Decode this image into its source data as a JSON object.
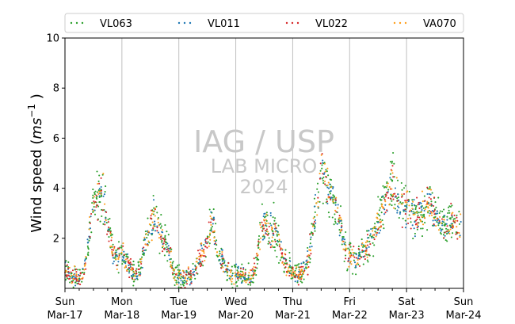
{
  "watermark": {
    "line1": "IAG / USP",
    "line2": "LAB MICRO",
    "line3": "2024"
  },
  "chart_data": {
    "type": "scatter",
    "ylabel_main": "Wind speed (",
    "ylabel_unit_base": "ms",
    "ylabel_unit_exp": "−1",
    "ylabel_close": " )",
    "ylim": [
      0,
      10
    ],
    "yticks": [
      2,
      4,
      6,
      8,
      10
    ],
    "xlim": [
      "2024-03-17",
      "2024-03-24"
    ],
    "xticks": [
      {
        "day": "Sun",
        "date": "Mar-17"
      },
      {
        "day": "Mon",
        "date": "Mar-18"
      },
      {
        "day": "Tue",
        "date": "Mar-19"
      },
      {
        "day": "Wed",
        "date": "Mar-20"
      },
      {
        "day": "Thu",
        "date": "Mar-21"
      },
      {
        "day": "Fri",
        "date": "Mar-22"
      },
      {
        "day": "Sat",
        "date": "Mar-23"
      },
      {
        "day": "Sun",
        "date": "Mar-24"
      }
    ],
    "grid": "vertical-daily",
    "legend_position": "top",
    "series": [
      {
        "name": "VL063",
        "color": "#2ca02c"
      },
      {
        "name": "VL011",
        "color": "#1f77b4"
      },
      {
        "name": "VL022",
        "color": "#d62728"
      },
      {
        "name": "VA070",
        "color": "#ff9f1c"
      }
    ],
    "hourly_envelope": [
      0.8,
      0.7,
      0.6,
      0.5,
      0.5,
      0.4,
      0.4,
      0.5,
      0.6,
      1.2,
      2.0,
      2.8,
      3.2,
      3.4,
      3.7,
      3.6,
      3.8,
      3.3,
      2.6,
      2.0,
      1.6,
      1.4,
      1.2,
      1.3,
      1.5,
      1.2,
      1.0,
      0.8,
      0.7,
      0.6,
      0.6,
      0.7,
      0.9,
      1.4,
      1.8,
      2.1,
      2.5,
      2.7,
      2.9,
      2.6,
      2.3,
      2.0,
      1.8,
      1.6,
      1.4,
      0.9,
      0.6,
      0.5,
      0.5,
      0.4,
      0.4,
      0.4,
      0.5,
      0.5,
      0.6,
      0.7,
      1.0,
      1.2,
      1.3,
      1.5,
      1.8,
      2.3,
      2.8,
      2.2,
      1.6,
      1.3,
      1.2,
      1.0,
      0.7,
      0.6,
      0.5,
      0.4,
      0.6,
      0.6,
      0.5,
      0.5,
      0.4,
      0.4,
      0.5,
      0.5,
      0.8,
      1.2,
      2.0,
      2.4,
      2.5,
      2.4,
      2.3,
      2.2,
      2.4,
      2.3,
      2.0,
      1.5,
      1.2,
      1.0,
      0.9,
      0.8,
      0.7,
      0.6,
      0.6,
      0.5,
      0.6,
      0.8,
      1.0,
      1.4,
      2.0,
      2.6,
      3.2,
      3.8,
      4.4,
      4.6,
      4.4,
      4.0,
      3.8,
      3.6,
      3.3,
      3.0,
      2.6,
      2.0,
      1.6,
      1.4,
      1.3,
      1.2,
      1.1,
      1.2,
      1.3,
      1.4,
      1.5,
      1.6,
      1.8,
      2.0,
      2.2,
      2.4,
      2.7,
      3.0,
      3.3,
      3.5,
      3.8,
      4.0,
      4.2,
      4.0,
      3.8,
      3.6,
      3.5,
      3.4,
      3.3,
      3.2,
      3.0,
      2.9,
      2.8,
      2.9,
      3.0,
      3.1,
      3.3,
      3.5,
      3.4,
      3.2,
      3.0,
      2.8,
      2.7,
      2.6,
      2.5,
      2.4,
      2.5,
      2.6,
      2.7,
      2.6,
      2.5,
      2.4
    ]
  }
}
